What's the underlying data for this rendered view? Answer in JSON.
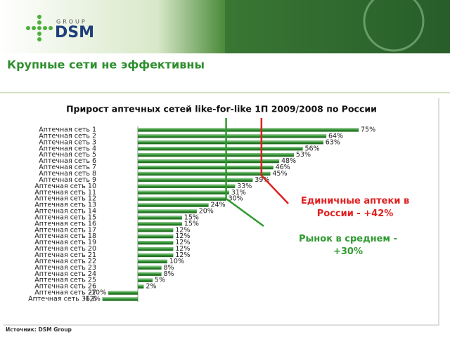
{
  "header": {
    "logo_sub": "GROUP",
    "logo": "DSM",
    "title": "Крупные сети не эффективны"
  },
  "footer": {
    "source": "Источник: DSM Group"
  },
  "chart_data": {
    "type": "bar",
    "orientation": "horizontal",
    "title": "Прирост аптечных сетей like-for-like 1П 2009/2008 по России",
    "categories": [
      "Аптечная сеть 1",
      "Аптечная сеть 2",
      "Аптечная сеть 3",
      "Аптечная сеть 4",
      "Аптечная сеть 5",
      "Аптечная сеть 6",
      "Аптечная сеть 7",
      "Аптечная сеть 8",
      "Аптечная сеть 9",
      "Аптечная сеть 10",
      "Аптечная сеть 11",
      "Аптечная сеть 12",
      "Аптечная сеть 13",
      "Аптечная сеть 14",
      "Аптечная сеть 15",
      "Аптечная сеть 16",
      "Аптечная сеть 17",
      "Аптечная сеть 18",
      "Аптечная сеть 19",
      "Аптечная сеть 20",
      "Аптечная сеть 21",
      "Аптечная сеть 22",
      "Аптечная сеть 23",
      "Аптечная сеть 24",
      "Аптечная сеть 25",
      "Аптечная сеть 26",
      "Аптечная сеть 27",
      "Аптечная сеть 36,6"
    ],
    "values": [
      75,
      64,
      63,
      56,
      53,
      48,
      46,
      45,
      39,
      33,
      31,
      30,
      24,
      20,
      15,
      15,
      12,
      12,
      12,
      12,
      12,
      10,
      8,
      8,
      5,
      2,
      -10,
      -12
    ],
    "value_labels": [
      "75%",
      "64%",
      "63%",
      "56%",
      "53%",
      "48%",
      "46%",
      "45%",
      "39%",
      "33%",
      "31%",
      "30%",
      "24%",
      "20%",
      "15%",
      "15%",
      "12%",
      "12%",
      "12%",
      "12%",
      "12%",
      "10%",
      "8%",
      "8%",
      "5%",
      "2%",
      "-10%",
      "-12%"
    ],
    "color": "#2f8f2f",
    "reference_lines": [
      {
        "value": 42,
        "label": "Единичные аптеки в России - +42%",
        "color": "#e02020"
      },
      {
        "value": 30,
        "label": "Рынок в среднем - +30%",
        "color": "#2f9a2f"
      }
    ]
  }
}
